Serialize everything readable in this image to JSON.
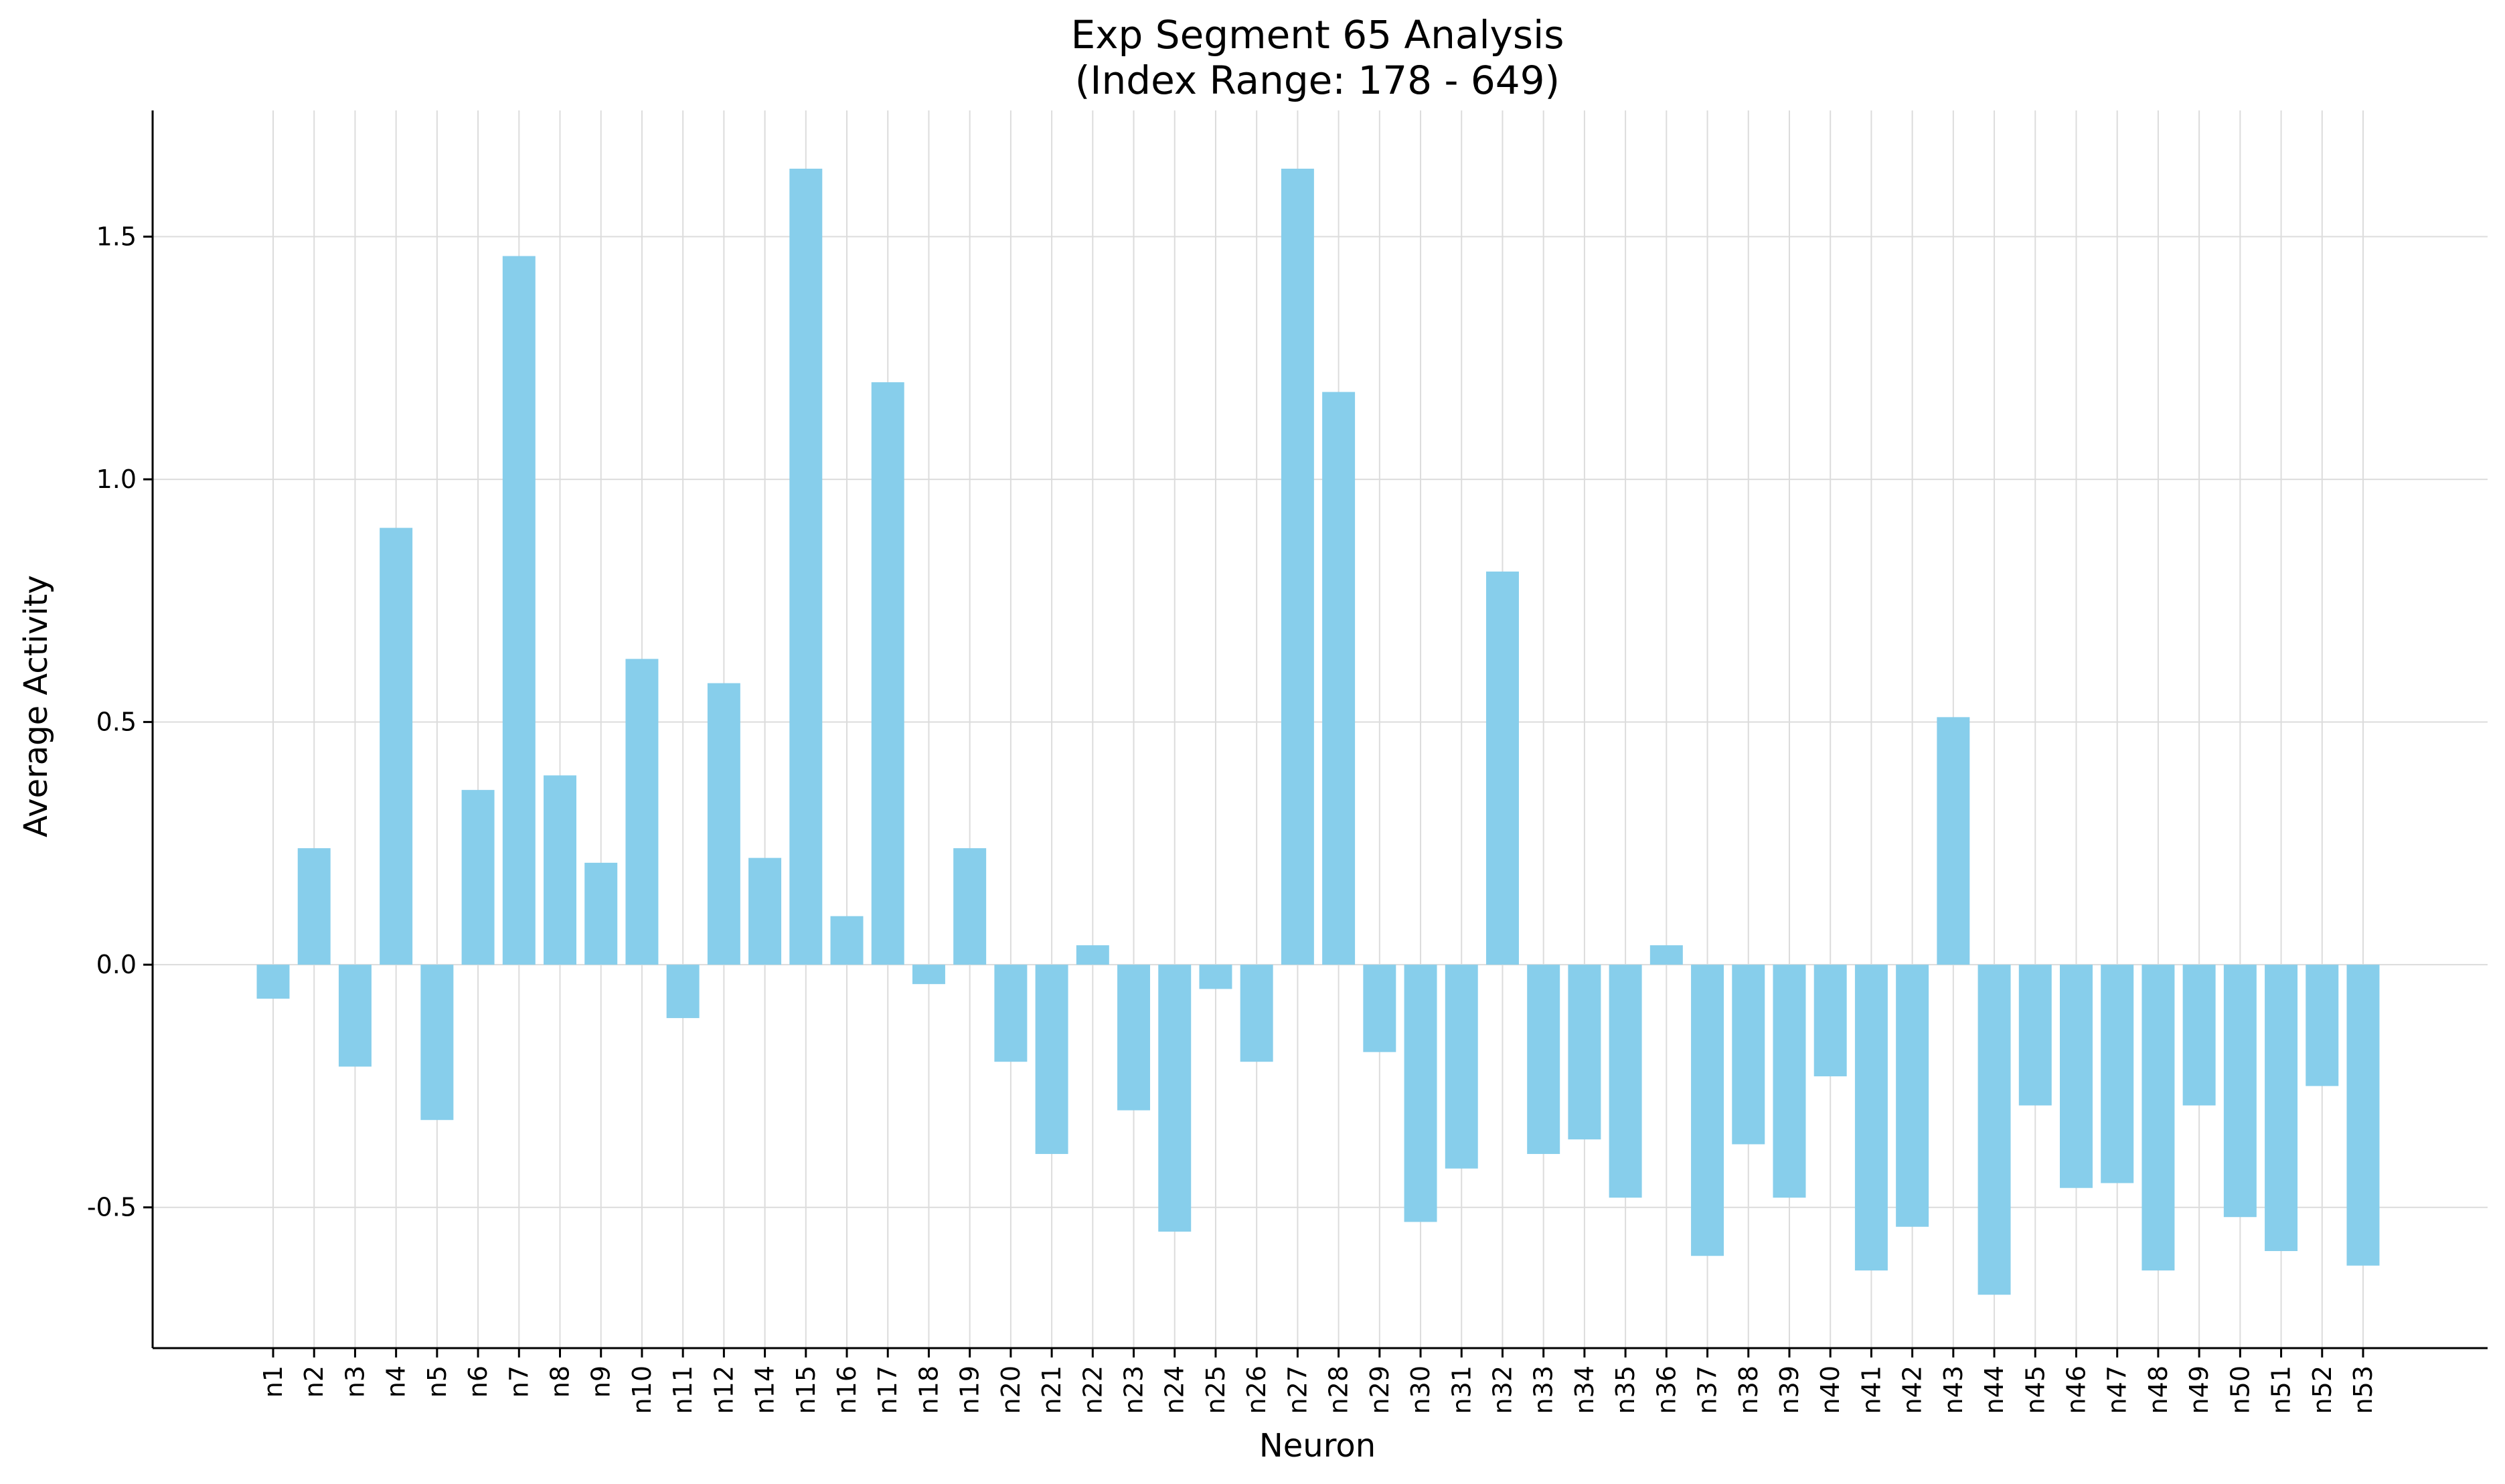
{
  "chart_data": {
    "type": "bar",
    "title": "Exp Segment 65 Analysis",
    "subtitle": "(Index Range: 178 - 649)",
    "xlabel": "Neuron",
    "ylabel": "Average Activity",
    "ylim": [
      -0.79,
      1.76
    ],
    "yticks": [
      -0.5,
      0.0,
      0.5,
      1.0,
      1.5
    ],
    "grid": true,
    "bar_color": "#87CEEB",
    "categories": [
      "n1",
      "n2",
      "n3",
      "n4",
      "n5",
      "n6",
      "n7",
      "n8",
      "n9",
      "n10",
      "n11",
      "n12",
      "n14",
      "n15",
      "n16",
      "n17",
      "n18",
      "n19",
      "n20",
      "n21",
      "n22",
      "n23",
      "n24",
      "n25",
      "n26",
      "n27",
      "n28",
      "n29",
      "n30",
      "n31",
      "n32",
      "n33",
      "n34",
      "n35",
      "n36",
      "n37",
      "n38",
      "n39",
      "n40",
      "n41",
      "n42",
      "n43",
      "n44",
      "n45",
      "n46",
      "n47",
      "n48",
      "n49",
      "n50",
      "n51",
      "n52",
      "n53"
    ],
    "values": [
      -0.07,
      0.24,
      -0.21,
      0.9,
      -0.32,
      0.36,
      1.46,
      0.39,
      0.21,
      0.63,
      -0.11,
      0.58,
      0.22,
      1.64,
      0.1,
      1.2,
      -0.04,
      0.24,
      -0.2,
      -0.39,
      0.04,
      -0.3,
      -0.55,
      -0.05,
      -0.2,
      1.64,
      1.18,
      -0.18,
      -0.53,
      -0.42,
      0.81,
      -0.39,
      -0.36,
      -0.48,
      0.04,
      -0.6,
      -0.37,
      -0.48,
      -0.23,
      -0.63,
      -0.54,
      0.51,
      -0.68,
      -0.29,
      -0.46,
      -0.45,
      -0.63,
      -0.29,
      -0.52,
      -0.59,
      -0.25,
      -0.62
    ]
  }
}
